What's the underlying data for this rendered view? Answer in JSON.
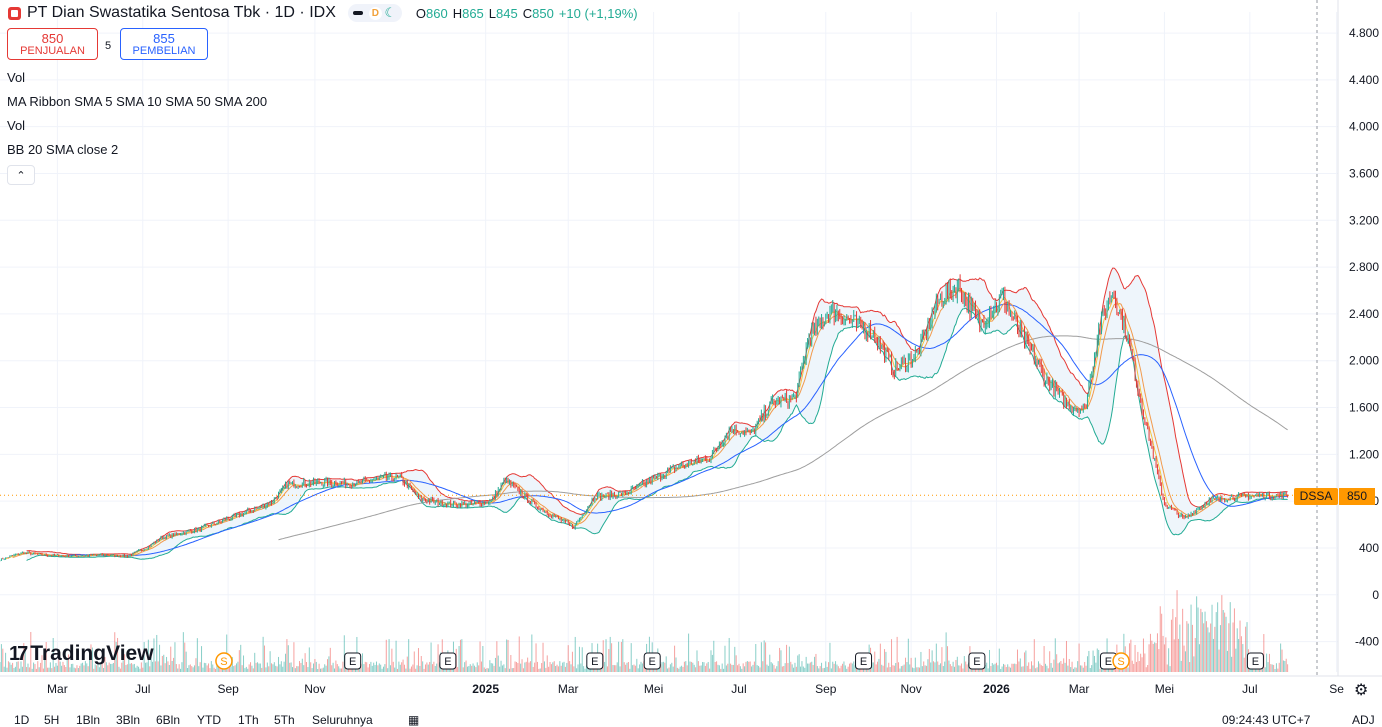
{
  "header": {
    "title": "PT Dian Swastatika Sentosa Tbk · 1D · IDX",
    "mode_letter": "D",
    "moon_icon": "☾",
    "ohlc": [
      {
        "key": "O",
        "value": "860"
      },
      {
        "key": "H",
        "value": "865"
      },
      {
        "key": "L",
        "value": "845"
      },
      {
        "key": "C",
        "value": "850"
      }
    ],
    "change": "+10 (+1,19%)"
  },
  "trade": {
    "sell_price": "850",
    "sell_label": "PENJUALAN",
    "spread": "5",
    "buy_price": "855",
    "buy_label": "PEMBELIAN"
  },
  "indicators": [
    "Vol",
    "MA Ribbon SMA 5 SMA 10 SMA 50 SMA 200",
    "Vol",
    "BB 20 SMA close 2"
  ],
  "collapse_icon": "⌃",
  "branding": {
    "mark": "17",
    "name": "TradingView"
  },
  "price_tag": {
    "ticker": "DSSA",
    "value": "850"
  },
  "timeframes": [
    "1D",
    "5H",
    "1Bln",
    "3Bln",
    "6Bln",
    "YTD",
    "1Th",
    "5Th",
    "Seluruhnya"
  ],
  "clock": "09:24:43 UTC+7",
  "adj_label": "ADJ",
  "colors": {
    "up": "#22ab94",
    "down": "#e53935",
    "accent": "#ff9800",
    "bb_upper": "#e53935",
    "bb_lower": "#22ab94",
    "bb_fill": "#eef5fb",
    "sma5": "#f5c542",
    "sma10": "#f29a4c",
    "sma50": "#2962ff",
    "sma200": "#9e9e9e",
    "vol_up": "#26a69a",
    "vol_down": "#ef5350"
  },
  "chart_data": {
    "type": "line",
    "symbol": "DSSA",
    "y_ticks": [
      -400,
      0,
      400,
      800,
      1200,
      1600,
      2000,
      2400,
      2800,
      3200,
      3600,
      4000,
      4400,
      4800
    ],
    "y_tick_labels": [
      "-400",
      "0",
      "400",
      "800",
      "1.200",
      "1.600",
      "2.000",
      "2.400",
      "2.800",
      "3.200",
      "3.600",
      "4.000",
      "4.400",
      "4.800"
    ],
    "ylim": [
      -660,
      4980
    ],
    "x_labels": [
      "Mar",
      "Jul",
      "Sep",
      "Nov",
      "2025",
      "Mar",
      "Mei",
      "Jul",
      "Sep",
      "Nov",
      "2026",
      "Mar",
      "Mei",
      "Jul",
      "Se"
    ],
    "x_label_dates": [
      "2024-03-01",
      "2024-05-01",
      "2024-07-01",
      "2024-09-01",
      "2025-01-01",
      "2025-03-01",
      "2025-05-01",
      "2025-07-01",
      "2025-09-01",
      "2025-11-01",
      "2026-01-01",
      "2026-03-01",
      "2026-05-01",
      "2026-07-01",
      "2026-09-01"
    ],
    "x_label_bold": [
      false,
      false,
      false,
      false,
      true,
      false,
      false,
      false,
      false,
      false,
      true,
      false,
      false,
      false,
      false
    ],
    "xlim": [
      "2024-01-20",
      "2026-09-02"
    ],
    "last_price": 850,
    "series_close": [
      [
        "2024-01-20",
        300
      ],
      [
        "2024-02-05",
        360
      ],
      [
        "2024-02-20",
        340
      ],
      [
        "2024-03-10",
        330
      ],
      [
        "2024-04-01",
        340
      ],
      [
        "2024-04-20",
        330
      ],
      [
        "2024-05-05",
        410
      ],
      [
        "2024-05-15",
        490
      ],
      [
        "2024-06-10",
        560
      ],
      [
        "2024-07-01",
        650
      ],
      [
        "2024-07-20",
        730
      ],
      [
        "2024-08-01",
        790
      ],
      [
        "2024-08-12",
        940
      ],
      [
        "2024-09-05",
        960
      ],
      [
        "2024-10-01",
        950
      ],
      [
        "2024-10-20",
        1000
      ],
      [
        "2024-11-01",
        1000
      ],
      [
        "2024-11-15",
        820
      ],
      [
        "2024-12-01",
        780
      ],
      [
        "2024-12-20",
        770
      ],
      [
        "2025-01-05",
        800
      ],
      [
        "2025-01-15",
        980
      ],
      [
        "2025-02-05",
        770
      ],
      [
        "2025-02-20",
        660
      ],
      [
        "2025-03-05",
        580
      ],
      [
        "2025-03-20",
        840
      ],
      [
        "2025-04-10",
        860
      ],
      [
        "2025-05-01",
        990
      ],
      [
        "2025-05-20",
        1100
      ],
      [
        "2025-06-10",
        1170
      ],
      [
        "2025-06-25",
        1420
      ],
      [
        "2025-07-10",
        1380
      ],
      [
        "2025-07-25",
        1650
      ],
      [
        "2025-08-10",
        1680
      ],
      [
        "2025-08-20",
        2200
      ],
      [
        "2025-09-05",
        2430
      ],
      [
        "2025-09-20",
        2330
      ],
      [
        "2025-10-05",
        2240
      ],
      [
        "2025-10-20",
        1920
      ],
      [
        "2025-11-05",
        2050
      ],
      [
        "2025-11-20",
        2500
      ],
      [
        "2025-12-05",
        2640
      ],
      [
        "2025-12-20",
        2310
      ],
      [
        "2026-01-05",
        2540
      ],
      [
        "2026-01-20",
        2200
      ],
      [
        "2026-02-05",
        1850
      ],
      [
        "2026-02-20",
        1630
      ],
      [
        "2026-03-05",
        1580
      ],
      [
        "2026-03-15",
        2270
      ],
      [
        "2026-03-25",
        2600
      ],
      [
        "2026-04-05",
        2180
      ],
      [
        "2026-04-15",
        1600
      ],
      [
        "2026-05-01",
        780
      ],
      [
        "2026-05-15",
        650
      ],
      [
        "2026-06-01",
        800
      ],
      [
        "2026-06-20",
        840
      ],
      [
        "2026-07-10",
        850
      ],
      [
        "2026-07-28",
        850
      ]
    ],
    "series": [
      {
        "name": "SMA 5"
      },
      {
        "name": "SMA 10"
      },
      {
        "name": "SMA 50"
      },
      {
        "name": "SMA 200"
      }
    ],
    "grid": true,
    "legend": "top-left"
  }
}
